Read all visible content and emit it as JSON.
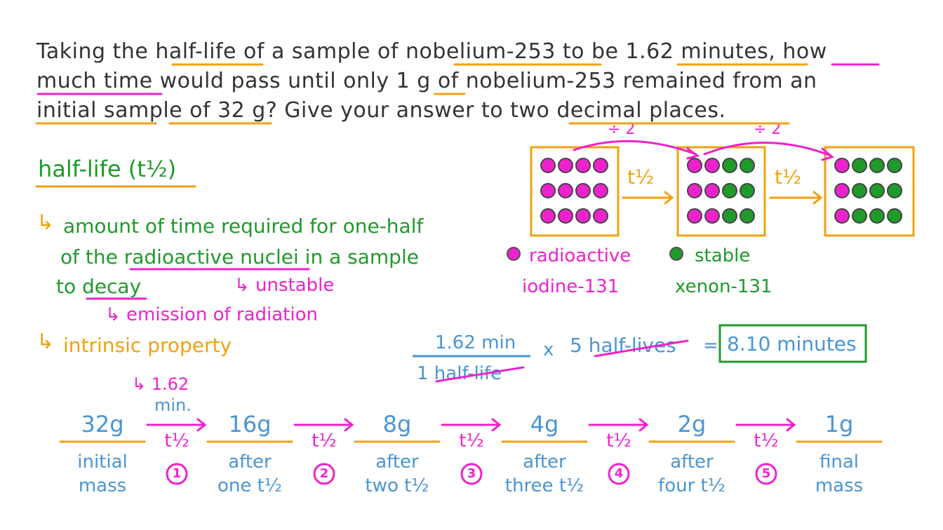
{
  "colors": {
    "text": "#333333",
    "orange": "#f2a10e",
    "pink": "#ee22cc",
    "green": "#1f9a2b",
    "blue": "#4a95d4"
  },
  "question": {
    "line1": "Taking the half-life of a sample of nobelium-253 to be 1.62 minutes, how",
    "line2": "much time would pass until only 1 g of nobelium-253 remained from an",
    "line3": "initial sample of 32 g? Give your answer to two decimal places."
  },
  "definition": {
    "title": "half-life (t½)",
    "arrow1": "↳",
    "def_line1": "amount of time required for one-half",
    "def_line2": "of the radioactive nuclei in a sample",
    "def_line3": "to decay",
    "unstable": "↳ unstable",
    "emission": "↳ emission of radiation",
    "arrow2": "↳",
    "intrinsic": "intrinsic property",
    "halflife_value_line1": "↳ 1.62",
    "halflife_value_line2": "min."
  },
  "decay_diagram": {
    "divide_label": "÷ 2",
    "arrow_label": "t½",
    "boxes": [
      {
        "radioactive": 12,
        "stable": 0
      },
      {
        "radioactive": 6,
        "stable": 6
      },
      {
        "radioactive": 3,
        "stable": 9
      }
    ],
    "legend": {
      "radioactive_line1": "radioactive",
      "radioactive_line2": "iodine-131",
      "stable_line1": "stable",
      "stable_line2": "xenon-131"
    }
  },
  "calculation": {
    "numerator": "1.62 min",
    "denominator": "1 half-life",
    "times": "x",
    "factor": "5 half-lives",
    "equals": "=",
    "answer": "8.10 minutes"
  },
  "timeline": {
    "step_label": "t½",
    "stages": [
      {
        "mass": "32g",
        "line1": "initial",
        "line2": "mass"
      },
      {
        "mass": "16g",
        "line1": "after",
        "line2": "one t½"
      },
      {
        "mass": "8g",
        "line1": "after",
        "line2": "two t½"
      },
      {
        "mass": "4g",
        "line1": "after",
        "line2": "three t½"
      },
      {
        "mass": "2g",
        "line1": "after",
        "line2": "four t½"
      },
      {
        "mass": "1g",
        "line1": "final",
        "line2": "mass"
      }
    ],
    "step_numbers": [
      "1",
      "2",
      "3",
      "4",
      "5"
    ]
  }
}
